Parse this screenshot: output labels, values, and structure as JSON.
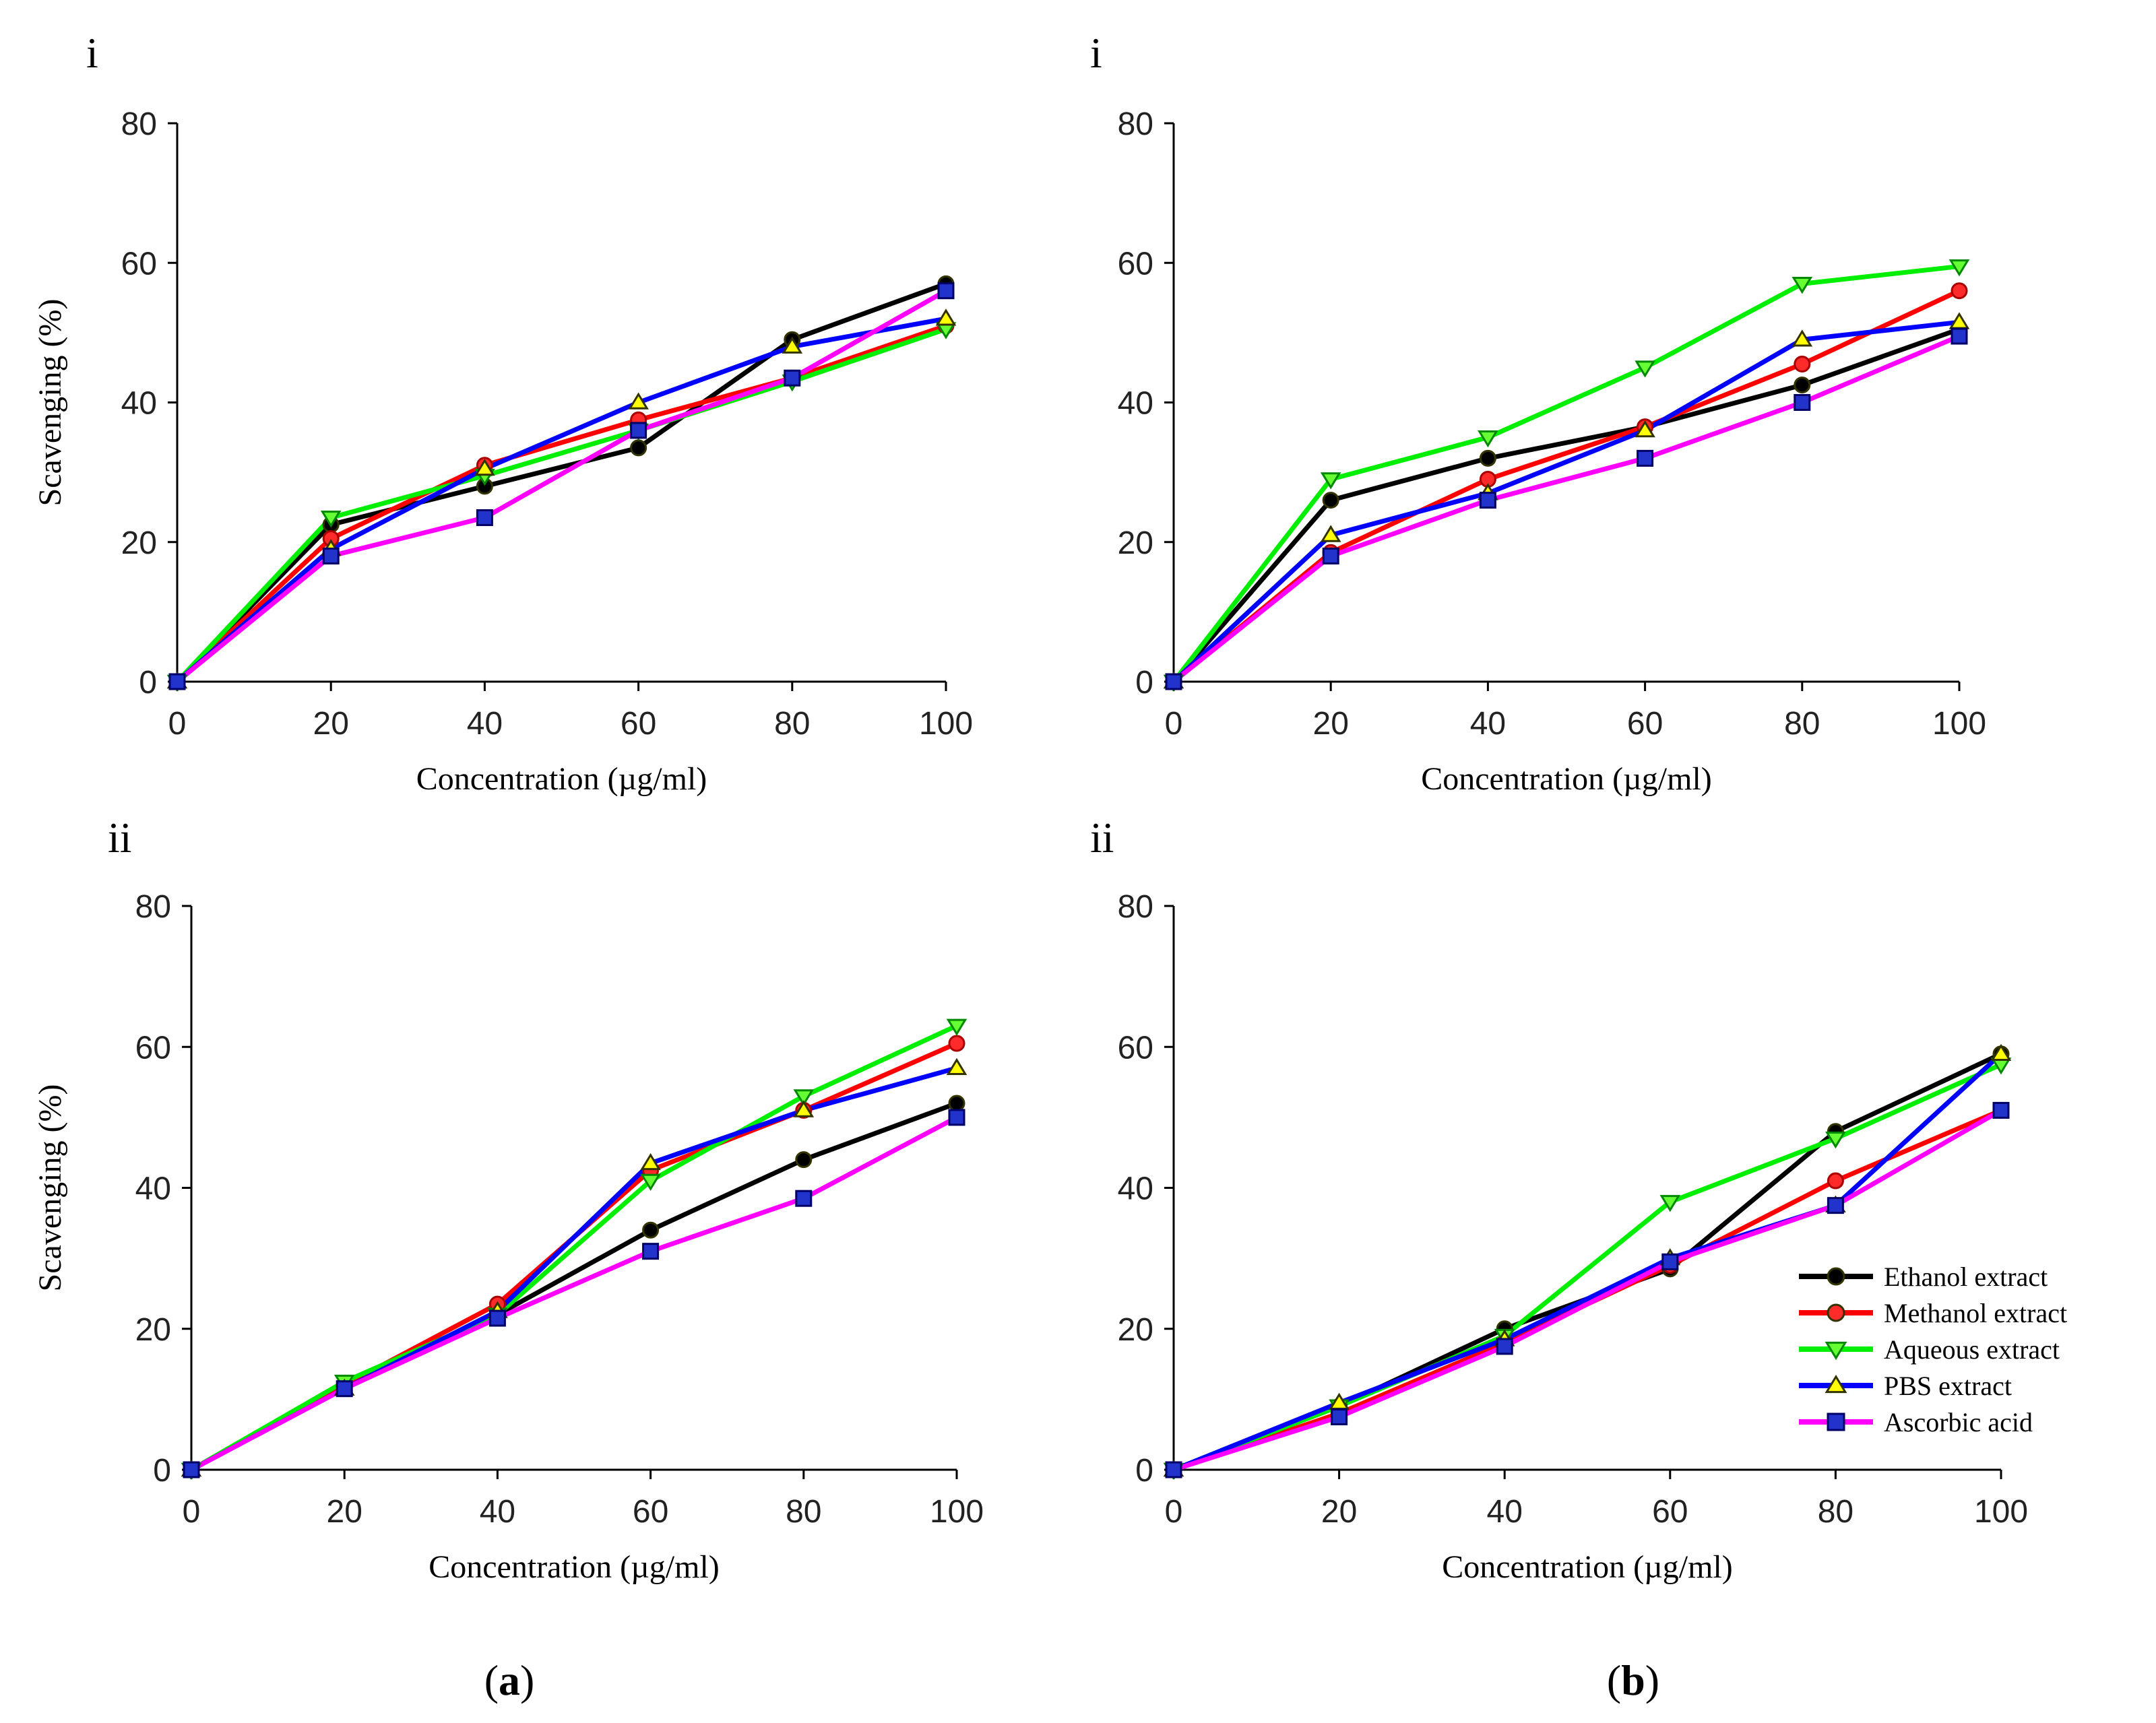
{
  "figure": {
    "caption_a": "a",
    "caption_b": "b"
  },
  "legend": {
    "items": [
      {
        "name": "Ethanol extract",
        "color": "#000000",
        "marker": "circle",
        "marker_fill": "#000000"
      },
      {
        "name": "Methanol extract",
        "color": "#ff0000",
        "marker": "circle",
        "marker_fill": "#ff2a2a"
      },
      {
        "name": "Aqueous extract",
        "color": "#00ee00",
        "marker": "triangle-down",
        "marker_fill": "#66ff33"
      },
      {
        "name": "PBS extract",
        "color": "#0000ff",
        "marker": "triangle-up",
        "marker_fill": "#ffff00"
      },
      {
        "name": "Ascorbic acid",
        "color": "#ff00ff",
        "marker": "square",
        "marker_fill": "#2233cc"
      }
    ]
  },
  "chart_data": [
    {
      "id": "a-i",
      "type": "line",
      "panel_label": "i",
      "xlabel": "Concentration (µg/ml)",
      "ylabel": "Scavenging (%)",
      "x": [
        0,
        20,
        40,
        60,
        80,
        100
      ],
      "xticks": [
        "0",
        "20",
        "40",
        "60",
        "80",
        "100"
      ],
      "yticks": [
        "0",
        "20",
        "40",
        "60",
        "80"
      ],
      "xlim": [
        0,
        100
      ],
      "ylim": [
        0,
        80
      ],
      "series": [
        {
          "name": "Ethanol extract",
          "values": [
            0,
            22.5,
            28,
            33.5,
            49,
            57
          ]
        },
        {
          "name": "Methanol extract",
          "values": [
            0,
            20.5,
            31,
            37.5,
            43.5,
            51
          ]
        },
        {
          "name": "Aqueous extract",
          "values": [
            0,
            23.5,
            29.5,
            36,
            43,
            50.5
          ]
        },
        {
          "name": "PBS extract",
          "values": [
            0,
            19,
            30.5,
            40,
            48,
            52
          ]
        },
        {
          "name": "Ascorbic acid",
          "values": [
            0,
            18,
            23.5,
            36,
            43.5,
            56
          ]
        }
      ]
    },
    {
      "id": "b-i",
      "type": "line",
      "panel_label": "i",
      "xlabel": "Concentration (µg/ml)",
      "ylabel": "",
      "x": [
        0,
        20,
        40,
        60,
        80,
        100
      ],
      "xticks": [
        "0",
        "20",
        "40",
        "60",
        "80",
        "100"
      ],
      "yticks": [
        "0",
        "20",
        "40",
        "60",
        "80"
      ],
      "xlim": [
        0,
        100
      ],
      "ylim": [
        0,
        80
      ],
      "series": [
        {
          "name": "Ethanol extract",
          "values": [
            0,
            26,
            32,
            36.5,
            42.5,
            50.5
          ]
        },
        {
          "name": "Methanol extract",
          "values": [
            0,
            18.5,
            29,
            36.5,
            45.5,
            56
          ]
        },
        {
          "name": "Aqueous extract",
          "values": [
            0,
            29,
            35,
            45,
            57,
            59.5
          ]
        },
        {
          "name": "PBS extract",
          "values": [
            0,
            21,
            27,
            36,
            49,
            51.5
          ]
        },
        {
          "name": "Ascorbic acid",
          "values": [
            0,
            18,
            26,
            32,
            40,
            49.5
          ]
        }
      ]
    },
    {
      "id": "a-ii",
      "type": "line",
      "panel_label": "ii",
      "xlabel": "Concentration (µg/ml)",
      "ylabel": "Scavenging (%)",
      "x": [
        0,
        20,
        40,
        60,
        80,
        100
      ],
      "xticks": [
        "0",
        "20",
        "40",
        "60",
        "80",
        "100"
      ],
      "yticks": [
        "0",
        "20",
        "40",
        "60",
        "80"
      ],
      "xlim": [
        0,
        100
      ],
      "ylim": [
        0,
        80
      ],
      "series": [
        {
          "name": "Ethanol extract",
          "values": [
            0,
            12,
            22,
            34,
            44,
            52
          ]
        },
        {
          "name": "Methanol extract",
          "values": [
            0,
            12,
            23.5,
            42.5,
            51,
            60.5
          ]
        },
        {
          "name": "Aqueous extract",
          "values": [
            0,
            12.5,
            22,
            41,
            53,
            63
          ]
        },
        {
          "name": "PBS extract",
          "values": [
            0,
            11.5,
            22.5,
            43.5,
            51,
            57
          ]
        },
        {
          "name": "Ascorbic acid",
          "values": [
            0,
            11.5,
            21.5,
            31,
            38.5,
            50
          ]
        }
      ]
    },
    {
      "id": "b-ii",
      "type": "line",
      "panel_label": "ii",
      "xlabel": "Concentration (µg/ml)",
      "ylabel": "",
      "x": [
        0,
        20,
        40,
        60,
        80,
        100
      ],
      "xticks": [
        "0",
        "20",
        "40",
        "60",
        "80",
        "100"
      ],
      "yticks": [
        "0",
        "20",
        "40",
        "60",
        "80"
      ],
      "xlim": [
        0,
        100
      ],
      "ylim": [
        0,
        80
      ],
      "series": [
        {
          "name": "Ethanol extract",
          "values": [
            0,
            9,
            20,
            28.5,
            48,
            59
          ]
        },
        {
          "name": "Methanol extract",
          "values": [
            0,
            8,
            18,
            29,
            41,
            51
          ]
        },
        {
          "name": "Aqueous extract",
          "values": [
            0,
            9,
            19,
            38,
            47,
            57.5
          ]
        },
        {
          "name": "PBS extract",
          "values": [
            0,
            9.5,
            18.5,
            30,
            37.5,
            59
          ]
        },
        {
          "name": "Ascorbic acid",
          "values": [
            0,
            7.5,
            17.5,
            29.5,
            37.5,
            51
          ]
        }
      ]
    }
  ]
}
